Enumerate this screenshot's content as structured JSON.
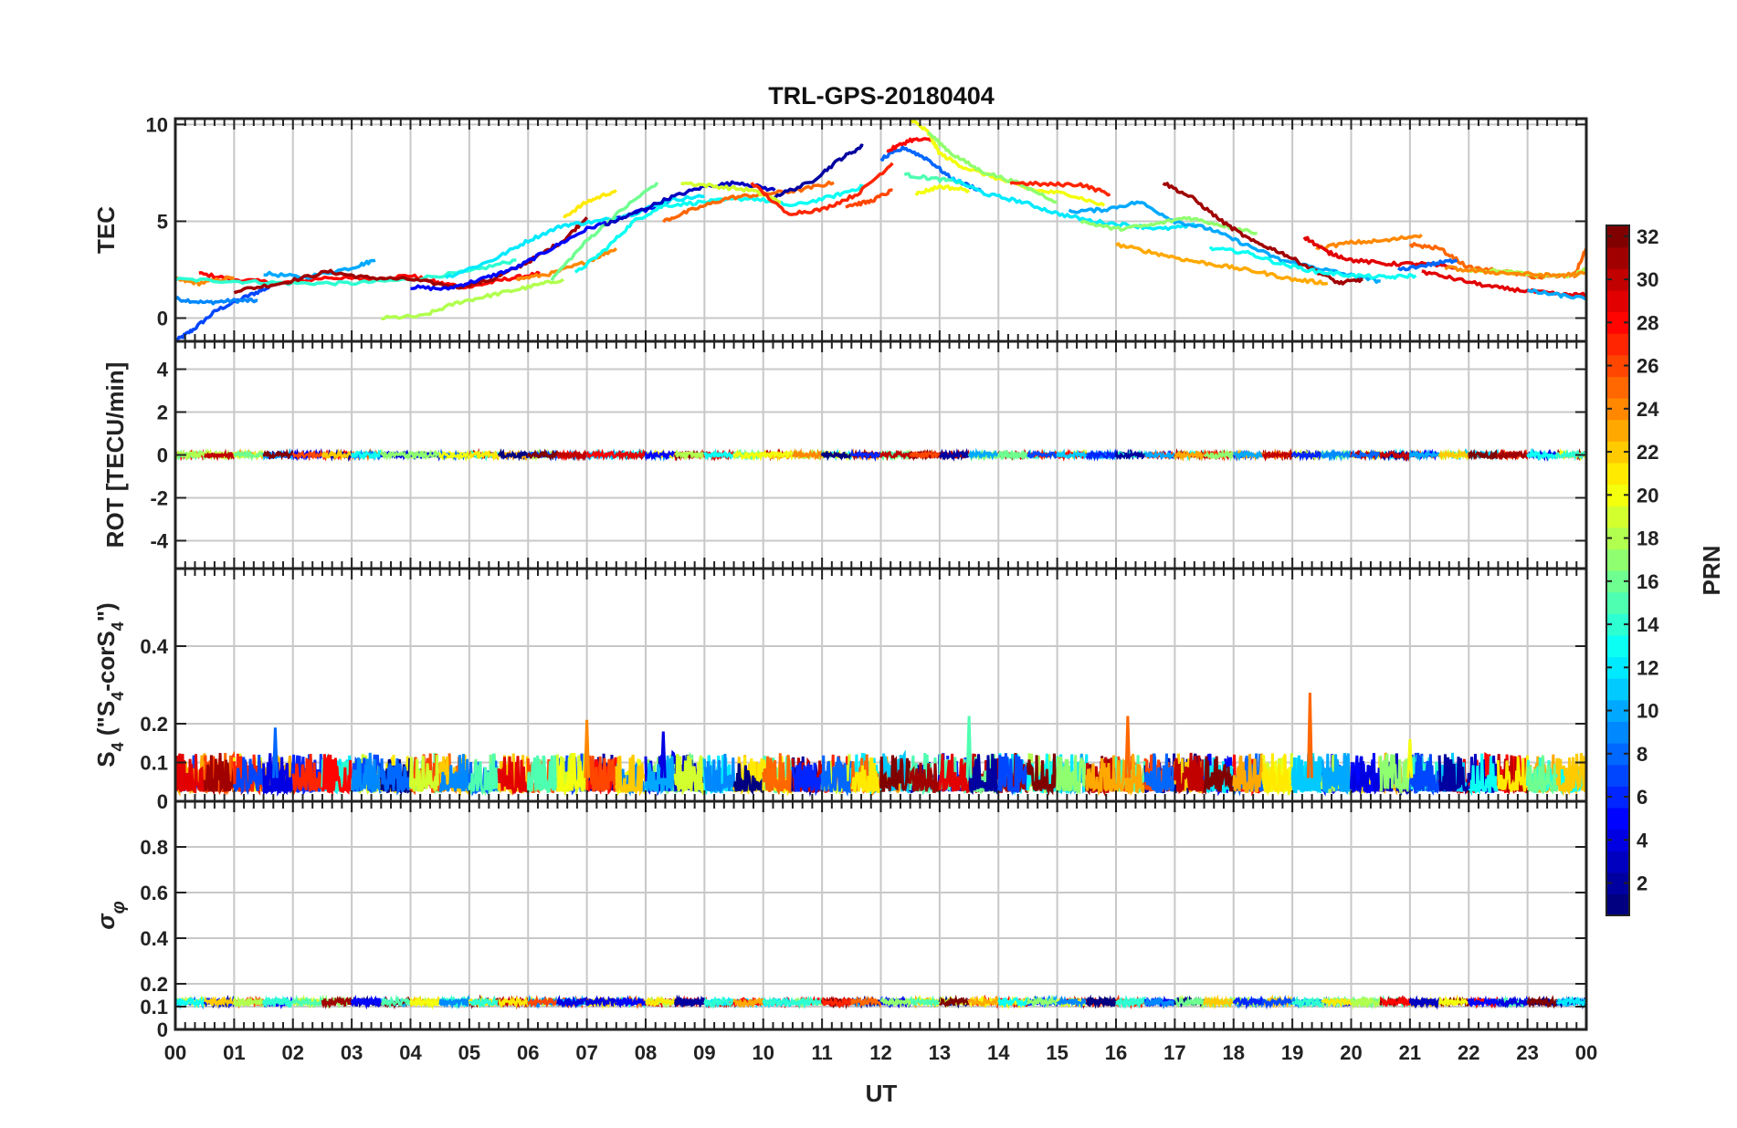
{
  "chart_data": {
    "title": "TRL-GPS-20180404",
    "type": "line",
    "x_axis": {
      "label": "UT",
      "range": [
        0,
        24
      ],
      "tick_labels": [
        "00",
        "01",
        "02",
        "03",
        "04",
        "05",
        "06",
        "07",
        "08",
        "09",
        "10",
        "11",
        "12",
        "13",
        "14",
        "15",
        "16",
        "17",
        "18",
        "19",
        "20",
        "21",
        "22",
        "23",
        "00"
      ]
    },
    "panels": [
      {
        "name": "tec",
        "ylabel": "TEC",
        "ylim": [
          -1.2,
          10.3
        ],
        "ticks": [
          0,
          5,
          10
        ],
        "series": [
          {
            "prn": 7,
            "x": [
              0,
              0.3,
              0.7,
              1.2,
              1.6
            ],
            "y": [
              -1.2,
              -0.6,
              0.4,
              1.1,
              1.6
            ]
          },
          {
            "prn": 9,
            "x": [
              0,
              0.5,
              1.0,
              1.4
            ],
            "y": [
              1.0,
              0.8,
              0.9,
              0.9
            ]
          },
          {
            "prn": 28,
            "x": [
              0.4,
              1.0,
              1.8,
              2.6,
              3.3,
              4.0,
              4.5,
              5.0,
              5.6,
              6.2
            ],
            "y": [
              2.3,
              2.0,
              1.8,
              2.1,
              2.0,
              2.2,
              1.8,
              1.6,
              2.0,
              2.3
            ]
          },
          {
            "prn": 24,
            "x": [
              0,
              0.4,
              1.0
            ],
            "y": [
              2.0,
              1.8,
              2.1
            ]
          },
          {
            "prn": 14,
            "x": [
              0,
              1.0,
              2.0,
              3.0,
              4.0,
              5.0,
              5.8
            ],
            "y": [
              2.0,
              1.9,
              1.8,
              1.8,
              2.0,
              2.4,
              3.0
            ]
          },
          {
            "prn": 10,
            "x": [
              1.5,
              2.2,
              3.0,
              3.4
            ],
            "y": [
              2.3,
              2.1,
              2.6,
              3.0
            ]
          },
          {
            "prn": 31,
            "x": [
              1.0,
              1.8,
              2.6,
              3.2,
              4.0,
              4.8,
              5.4,
              6.0,
              6.6,
              7.0
            ],
            "y": [
              1.4,
              1.8,
              2.4,
              2.1,
              2.0,
              1.6,
              2.0,
              2.9,
              4.0,
              5.2
            ]
          },
          {
            "prn": 5,
            "x": [
              4.0,
              4.6,
              5.2,
              5.8,
              6.4,
              7.0,
              7.6,
              8.4
            ],
            "y": [
              1.6,
              1.5,
              2.0,
              2.6,
              3.6,
              4.6,
              5.2,
              6.0
            ]
          },
          {
            "prn": 18,
            "x": [
              3.5,
              4.2,
              4.8,
              5.4,
              6.0,
              6.6
            ],
            "y": [
              0.0,
              0.1,
              0.8,
              1.2,
              1.6,
              2.0
            ]
          },
          {
            "prn": 24,
            "x": [
              5.8,
              6.4,
              7.0,
              7.5
            ],
            "y": [
              2.0,
              2.3,
              2.9,
              3.6
            ]
          },
          {
            "prn": 12,
            "x": [
              4.6,
              5.4,
              6.0,
              6.6,
              7.2,
              7.8,
              8.4,
              9.0
            ],
            "y": [
              2.1,
              3.0,
              4.0,
              4.8,
              5.0,
              5.4,
              6.1,
              6.3
            ]
          },
          {
            "prn": 21,
            "x": [
              6.6,
              7.0,
              7.5
            ],
            "y": [
              5.2,
              6.0,
              6.6
            ]
          },
          {
            "prn": 13,
            "x": [
              6.8,
              7.3,
              7.8,
              8.3,
              9.0,
              9.8,
              10.5,
              11.2,
              11.7
            ],
            "y": [
              2.3,
              3.5,
              5.0,
              5.8,
              6.0,
              6.2,
              5.8,
              6.3,
              6.8
            ]
          },
          {
            "prn": 16,
            "x": [
              6.4,
              7.0,
              7.6,
              8.2
            ],
            "y": [
              2.0,
              4.0,
              5.6,
              7.0
            ]
          },
          {
            "prn": 3,
            "x": [
              7.3,
              7.8,
              8.4,
              9.0,
              9.6,
              10.2
            ],
            "y": [
              4.8,
              5.4,
              6.2,
              6.8,
              7.0,
              6.6
            ]
          },
          {
            "prn": 25,
            "x": [
              8.3,
              8.8,
              9.4,
              10.0,
              10.6,
              11.2
            ],
            "y": [
              5.0,
              5.6,
              6.2,
              6.4,
              6.6,
              7.0
            ]
          },
          {
            "prn": 2,
            "x": [
              10.2,
              10.8,
              11.3,
              11.7
            ],
            "y": [
              6.3,
              7.0,
              8.2,
              8.9
            ]
          },
          {
            "prn": 19,
            "x": [
              8.6,
              9.2,
              9.8,
              10.3
            ],
            "y": [
              7.0,
              6.8,
              6.6,
              6.0
            ]
          },
          {
            "prn": 27,
            "x": [
              9.8,
              10.4,
              11.0,
              11.6,
              12.2
            ],
            "y": [
              7.0,
              5.4,
              5.6,
              6.4,
              8.0
            ]
          },
          {
            "prn": 26,
            "x": [
              11.4,
              11.8,
              12.2
            ],
            "y": [
              5.8,
              6.0,
              6.6
            ]
          },
          {
            "prn": 8,
            "x": [
              12.0,
              12.4,
              12.8,
              13.2,
              13.7
            ],
            "y": [
              8.2,
              8.8,
              8.2,
              7.2,
              6.6
            ]
          },
          {
            "prn": 28,
            "x": [
              12.1,
              12.5,
              12.9
            ],
            "y": [
              8.6,
              9.2,
              9.2
            ]
          },
          {
            "prn": 20,
            "x": [
              12.5,
              12.8,
              13.0,
              13.4,
              14.0,
              14.6,
              15.2,
              15.8
            ],
            "y": [
              10.3,
              9.6,
              8.5,
              7.8,
              7.2,
              6.6,
              6.4,
              5.8
            ]
          },
          {
            "prn": 17,
            "x": [
              12.8,
              13.2,
              13.7,
              14.3,
              15.0
            ],
            "y": [
              9.6,
              8.5,
              7.6,
              7.0,
              6.0
            ]
          },
          {
            "prn": 20,
            "x": [
              12.6,
              13.0,
              13.5
            ],
            "y": [
              6.4,
              6.8,
              6.6
            ]
          },
          {
            "prn": 15,
            "x": [
              12.4,
              12.9,
              13.4
            ],
            "y": [
              7.4,
              7.2,
              7.0
            ]
          },
          {
            "prn": 12,
            "x": [
              13.2,
              13.8,
              14.4,
              15.0,
              15.6,
              16.2,
              16.8,
              17.4
            ],
            "y": [
              7.2,
              6.4,
              6.0,
              5.4,
              5.0,
              4.8,
              4.6,
              4.8
            ]
          },
          {
            "prn": 27,
            "x": [
              14.2,
              14.8,
              15.4,
              15.9
            ],
            "y": [
              7.0,
              6.9,
              6.9,
              6.4
            ]
          },
          {
            "prn": 10,
            "x": [
              15.2,
              15.8,
              16.4,
              17.0,
              17.6,
              18.2,
              18.8,
              19.4,
              20.0,
              20.5
            ],
            "y": [
              5.5,
              5.6,
              6.0,
              5.0,
              4.6,
              3.8,
              3.0,
              2.6,
              2.2,
              1.9
            ]
          },
          {
            "prn": 23,
            "x": [
              16.0,
              16.6,
              17.2,
              17.8,
              18.4,
              19.0,
              19.6
            ],
            "y": [
              3.8,
              3.4,
              3.0,
              2.7,
              2.4,
              2.0,
              1.8
            ]
          },
          {
            "prn": 17,
            "x": [
              15.4,
              16.0,
              16.6,
              17.2,
              17.8,
              18.4
            ],
            "y": [
              5.0,
              4.6,
              4.8,
              5.2,
              4.8,
              4.4
            ]
          },
          {
            "prn": 31,
            "x": [
              16.8,
              17.3,
              17.8,
              18.3,
              18.8,
              19.3,
              19.8,
              20.2
            ],
            "y": [
              7.0,
              6.2,
              5.0,
              4.0,
              3.4,
              2.6,
              1.8,
              2.0
            ]
          },
          {
            "prn": 13,
            "x": [
              17.6,
              18.2,
              18.8,
              19.4,
              20.0,
              20.6,
              21.1
            ],
            "y": [
              3.6,
              3.4,
              2.8,
              2.4,
              2.2,
              2.1,
              2.2
            ]
          },
          {
            "prn": 24,
            "x": [
              19.4,
              20.0,
              20.6,
              21.2
            ],
            "y": [
              3.6,
              3.9,
              4.0,
              4.3
            ]
          },
          {
            "prn": 29,
            "x": [
              19.2,
              19.6,
              20.0,
              20.6,
              21.2,
              21.8
            ],
            "y": [
              4.2,
              3.4,
              3.0,
              2.8,
              2.8,
              2.6
            ]
          },
          {
            "prn": 25,
            "x": [
              21.0,
              21.5,
              22.0,
              22.6,
              23.2,
              23.8,
              24.0
            ],
            "y": [
              3.8,
              3.6,
              2.6,
              2.4,
              2.1,
              2.2,
              3.6
            ]
          },
          {
            "prn": 29,
            "x": [
              21.2,
              21.8,
              22.4,
              23.0,
              23.6,
              24.0
            ],
            "y": [
              2.4,
              2.0,
              1.6,
              1.4,
              1.2,
              1.2
            ]
          },
          {
            "prn": 8,
            "x": [
              20.8,
              21.4,
              21.8
            ],
            "y": [
              2.5,
              2.8,
              3.0
            ]
          },
          {
            "prn": 18,
            "x": [
              22.0,
              22.6,
              23.2,
              23.8,
              24.0
            ],
            "y": [
              2.5,
              2.4,
              2.2,
              2.2,
              2.6
            ]
          },
          {
            "prn": 10,
            "x": [
              23.0,
              23.5,
              24.0
            ],
            "y": [
              1.4,
              1.2,
              1.0
            ]
          },
          {
            "prn": 24,
            "x": [
              21.6,
              22.2,
              22.8,
              23.4,
              24.0
            ],
            "y": [
              2.6,
              2.4,
              2.3,
              2.2,
              2.3
            ]
          }
        ]
      },
      {
        "name": "rot",
        "ylabel": "ROT [TECU/min]",
        "ylim": [
          -5.3,
          5.3
        ],
        "ticks": [
          -4,
          -2,
          0,
          2,
          4
        ],
        "series_level": 0,
        "series_spread": 0.25
      },
      {
        "name": "s4",
        "ylabel": "S4 (\"S4-corS4\")",
        "ylabel_parts": [
          "S",
          "4",
          " (\"S",
          "4",
          "-corS",
          "4",
          "\")"
        ],
        "ylim": [
          0,
          0.6
        ],
        "ticks": [
          0,
          0.1,
          0.2,
          0.4
        ],
        "series_level": 0.05,
        "series_spread": 0.1,
        "spikes": [
          {
            "x": 1.7,
            "y": 0.19
          },
          {
            "x": 7.0,
            "y": 0.21
          },
          {
            "x": 8.3,
            "y": 0.18
          },
          {
            "x": 13.5,
            "y": 0.22
          },
          {
            "x": 16.2,
            "y": 0.22
          },
          {
            "x": 19.3,
            "y": 0.28
          },
          {
            "x": 21.0,
            "y": 0.16
          }
        ]
      },
      {
        "name": "sigma_phi",
        "ylabel": "σφ",
        "ylabel_parts": [
          "σ",
          "φ"
        ],
        "ylim": [
          0,
          1.0
        ],
        "ticks": [
          0,
          0.1,
          0.2,
          0.4,
          0.6,
          0.8
        ],
        "series_level": 0.12,
        "series_spread": 0.03
      }
    ],
    "colorbar": {
      "label": "PRN",
      "range": [
        1,
        32
      ],
      "tick_labels": [
        2,
        4,
        6,
        8,
        10,
        12,
        14,
        16,
        18,
        20,
        22,
        24,
        26,
        28,
        30,
        32
      ]
    },
    "colormap": "jet",
    "grid": true
  }
}
